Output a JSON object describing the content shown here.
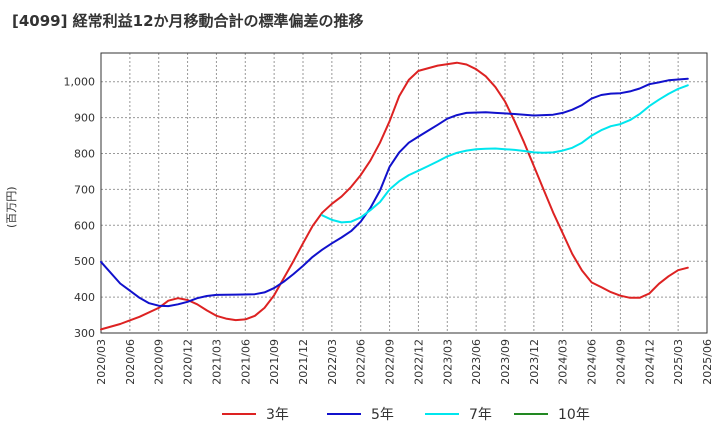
{
  "chart_data": {
    "type": "line",
    "title": "[4099]  経常利益12か月移動合計の標準偏差の推移",
    "ylabel": "(百万円)",
    "xlabel": "",
    "ylim": [
      300,
      1080
    ],
    "yticks": [
      300,
      400,
      500,
      600,
      700,
      800,
      900,
      1000
    ],
    "ytick_labels": [
      "300",
      "400",
      "500",
      "600",
      "700",
      "800",
      "900",
      "1,000"
    ],
    "xticks": [
      "2020/03",
      "2020/06",
      "2020/09",
      "2020/12",
      "2021/03",
      "2021/06",
      "2021/09",
      "2021/12",
      "2022/03",
      "2022/06",
      "2022/09",
      "2022/12",
      "2023/03",
      "2023/06",
      "2023/09",
      "2023/12",
      "2024/03",
      "2024/06",
      "2024/09",
      "2024/12",
      "2025/03",
      "2025/06"
    ],
    "grid": true,
    "legend_position": "bottom",
    "series": [
      {
        "name": "3年",
        "color": "#dd2222",
        "points": [
          [
            "2020/03",
            310
          ],
          [
            "2020/05",
            325
          ],
          [
            "2020/07",
            345
          ],
          [
            "2020/09",
            370
          ],
          [
            "2020/10",
            390
          ],
          [
            "2020/11",
            397
          ],
          [
            "2020/12",
            392
          ],
          [
            "2021/01",
            380
          ],
          [
            "2021/02",
            363
          ],
          [
            "2021/03",
            348
          ],
          [
            "2021/04",
            340
          ],
          [
            "2021/05",
            336
          ],
          [
            "2021/06",
            338
          ],
          [
            "2021/07",
            348
          ],
          [
            "2021/08",
            370
          ],
          [
            "2021/09",
            405
          ],
          [
            "2021/10",
            453
          ],
          [
            "2021/11",
            500
          ],
          [
            "2021/12",
            550
          ],
          [
            "2022/01",
            598
          ],
          [
            "2022/02",
            635
          ],
          [
            "2022/03",
            660
          ],
          [
            "2022/04",
            680
          ],
          [
            "2022/05",
            707
          ],
          [
            "2022/06",
            740
          ],
          [
            "2022/07",
            780
          ],
          [
            "2022/08",
            830
          ],
          [
            "2022/09",
            890
          ],
          [
            "2022/10",
            960
          ],
          [
            "2022/11",
            1005
          ],
          [
            "2022/12",
            1030
          ],
          [
            "2023/02",
            1045
          ],
          [
            "2023/04",
            1053
          ],
          [
            "2023/05",
            1048
          ],
          [
            "2023/06",
            1035
          ],
          [
            "2023/07",
            1015
          ],
          [
            "2023/08",
            985
          ],
          [
            "2023/09",
            945
          ],
          [
            "2023/10",
            890
          ],
          [
            "2023/11",
            830
          ],
          [
            "2023/12",
            765
          ],
          [
            "2024/01",
            700
          ],
          [
            "2024/02",
            636
          ],
          [
            "2024/03",
            578
          ],
          [
            "2024/04",
            520
          ],
          [
            "2024/05",
            474
          ],
          [
            "2024/06",
            441
          ],
          [
            "2024/07",
            428
          ],
          [
            "2024/08",
            414
          ],
          [
            "2024/09",
            404
          ],
          [
            "2024/10",
            398
          ],
          [
            "2024/11",
            398
          ],
          [
            "2024/12",
            410
          ],
          [
            "2025/01",
            437
          ],
          [
            "2025/02",
            458
          ],
          [
            "2025/03",
            475
          ],
          [
            "2025/04",
            482
          ]
        ]
      },
      {
        "name": "5年",
        "color": "#1111cc",
        "points": [
          [
            "2020/03",
            498
          ],
          [
            "2020/05",
            438
          ],
          [
            "2020/07",
            398
          ],
          [
            "2020/08",
            383
          ],
          [
            "2020/09",
            376
          ],
          [
            "2020/10",
            375
          ],
          [
            "2020/11",
            380
          ],
          [
            "2020/12",
            387
          ],
          [
            "2021/01",
            397
          ],
          [
            "2021/02",
            403
          ],
          [
            "2021/03",
            406
          ],
          [
            "2021/05",
            407
          ],
          [
            "2021/07",
            408
          ],
          [
            "2021/08",
            413
          ],
          [
            "2021/09",
            425
          ],
          [
            "2021/10",
            443
          ],
          [
            "2021/11",
            464
          ],
          [
            "2021/12",
            487
          ],
          [
            "2022/01",
            512
          ],
          [
            "2022/02",
            532
          ],
          [
            "2022/03",
            550
          ],
          [
            "2022/04",
            566
          ],
          [
            "2022/05",
            584
          ],
          [
            "2022/06",
            610
          ],
          [
            "2022/07",
            648
          ],
          [
            "2022/08",
            697
          ],
          [
            "2022/09",
            763
          ],
          [
            "2022/10",
            803
          ],
          [
            "2022/11",
            830
          ],
          [
            "2022/12",
            847
          ],
          [
            "2023/02",
            880
          ],
          [
            "2023/03",
            897
          ],
          [
            "2023/04",
            907
          ],
          [
            "2023/05",
            913
          ],
          [
            "2023/07",
            915
          ],
          [
            "2023/08",
            913
          ],
          [
            "2023/10",
            910
          ],
          [
            "2023/12",
            906
          ],
          [
            "2024/02",
            908
          ],
          [
            "2024/03",
            913
          ],
          [
            "2024/04",
            922
          ],
          [
            "2024/05",
            935
          ],
          [
            "2024/06",
            953
          ],
          [
            "2024/07",
            963
          ],
          [
            "2024/08",
            967
          ],
          [
            "2024/09",
            968
          ],
          [
            "2024/10",
            973
          ],
          [
            "2024/11",
            981
          ],
          [
            "2024/12",
            993
          ],
          [
            "2025/01",
            998
          ],
          [
            "2025/02",
            1004
          ],
          [
            "2025/04",
            1008
          ]
        ]
      },
      {
        "name": "7年",
        "color": "#00e6ee",
        "points": [
          [
            "2022/02",
            628
          ],
          [
            "2022/03",
            615
          ],
          [
            "2022/04",
            608
          ],
          [
            "2022/05",
            610
          ],
          [
            "2022/06",
            622
          ],
          [
            "2022/07",
            642
          ],
          [
            "2022/08",
            665
          ],
          [
            "2022/09",
            700
          ],
          [
            "2022/10",
            723
          ],
          [
            "2022/11",
            740
          ],
          [
            "2022/12",
            752
          ],
          [
            "2023/01",
            765
          ],
          [
            "2023/02",
            778
          ],
          [
            "2023/03",
            792
          ],
          [
            "2023/04",
            802
          ],
          [
            "2023/05",
            808
          ],
          [
            "2023/06",
            812
          ],
          [
            "2023/07",
            813
          ],
          [
            "2023/08",
            814
          ],
          [
            "2023/09",
            812
          ],
          [
            "2023/10",
            810
          ],
          [
            "2023/11",
            807
          ],
          [
            "2023/12",
            803
          ],
          [
            "2024/01",
            802
          ],
          [
            "2024/02",
            803
          ],
          [
            "2024/03",
            808
          ],
          [
            "2024/04",
            816
          ],
          [
            "2024/05",
            830
          ],
          [
            "2024/06",
            850
          ],
          [
            "2024/07",
            865
          ],
          [
            "2024/08",
            876
          ],
          [
            "2024/09",
            882
          ],
          [
            "2024/10",
            893
          ],
          [
            "2024/11",
            910
          ],
          [
            "2024/12",
            932
          ],
          [
            "2025/01",
            950
          ],
          [
            "2025/02",
            966
          ],
          [
            "2025/03",
            980
          ],
          [
            "2025/04",
            990
          ]
        ]
      },
      {
        "name": "10年",
        "color": "#228822",
        "points": []
      }
    ]
  }
}
